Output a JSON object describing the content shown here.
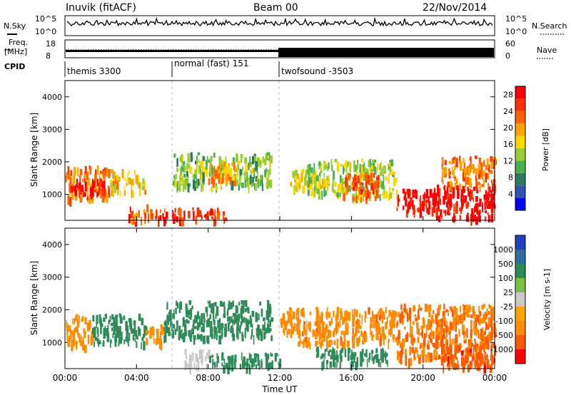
{
  "header": {
    "title": "Inuvik (fitACF)",
    "beam": "Beam 00",
    "date": "22/Nov/2014"
  },
  "nsky_panel": {
    "left_label": "N.Sky",
    "right_label": "N.Search",
    "left_ticks": [
      "10^5",
      "10^0"
    ],
    "right_ticks": [
      "10^5",
      "10^0"
    ]
  },
  "freq_panel": {
    "left_label_1": "Freq.",
    "left_label_2": "[MHz]",
    "left_ticks": [
      "18",
      "8"
    ],
    "right_label": "Nave",
    "right_ticks": [
      "60",
      "0"
    ]
  },
  "cpid_panel": {
    "label": "CPID",
    "segments": [
      {
        "name": "themis 3300",
        "start_hour": 0,
        "end_hour": 6
      },
      {
        "name": "normal (fast) 151",
        "start_hour": 6,
        "end_hour": 12
      },
      {
        "name": "twofsound -3503",
        "start_hour": 12,
        "end_hour": 24
      }
    ]
  },
  "colors": {
    "power": [
      "#0000ff",
      "#2b55b0",
      "#2e7a5e",
      "#4caf50",
      "#9acd32",
      "#ffd700",
      "#ffa500",
      "#ff6400",
      "#ff3000",
      "#ff0000"
    ],
    "velocity": [
      "#2040c0",
      "#2e6b9e",
      "#2e8b57",
      "#7bc043",
      "#c8c8c8",
      "#ffa500",
      "#ff8c00",
      "#ff5a00",
      "#ff0000"
    ]
  },
  "chart_data": [
    {
      "type": "heatmap",
      "panel": "power",
      "ylabel": "Slant Range [km]",
      "yticks": [
        1000,
        2000,
        3000,
        4000
      ],
      "ylim": [
        200,
        4500
      ],
      "xlim": [
        0,
        24
      ],
      "colorbar_label": "Power [dB]",
      "colorbar_ticks": [
        4,
        8,
        12,
        16,
        20,
        24,
        28
      ],
      "colorbar_range": [
        0,
        30
      ],
      "regions": [
        {
          "x": [
            0.0,
            2.5
          ],
          "y": [
            900,
            1900
          ],
          "value": 22
        },
        {
          "x": [
            0.3,
            2.2
          ],
          "y": [
            1050,
            1500
          ],
          "value": 28
        },
        {
          "x": [
            2.5,
            4.5
          ],
          "y": [
            1100,
            1800
          ],
          "value": 18
        },
        {
          "x": [
            3.5,
            5.0
          ],
          "y": [
            300,
            700
          ],
          "value": 24
        },
        {
          "x": [
            5.0,
            9.0
          ],
          "y": [
            250,
            600
          ],
          "value": 26
        },
        {
          "x": [
            6.0,
            11.5
          ],
          "y": [
            1300,
            2300
          ],
          "value": 12
        },
        {
          "x": [
            8.0,
            9.5
          ],
          "y": [
            1200,
            2000
          ],
          "value": 20
        },
        {
          "x": [
            12.5,
            14.5
          ],
          "y": [
            1200,
            1800
          ],
          "value": 16
        },
        {
          "x": [
            13.5,
            18.5
          ],
          "y": [
            1000,
            2100
          ],
          "value": 14
        },
        {
          "x": [
            15.5,
            17.5
          ],
          "y": [
            900,
            1700
          ],
          "value": 24
        },
        {
          "x": [
            18.5,
            21.0
          ],
          "y": [
            500,
            1200
          ],
          "value": 28
        },
        {
          "x": [
            20.5,
            24.0
          ],
          "y": [
            300,
            1300
          ],
          "value": 30
        },
        {
          "x": [
            21.0,
            24.0
          ],
          "y": [
            1300,
            2200
          ],
          "value": 22
        }
      ]
    },
    {
      "type": "heatmap",
      "panel": "velocity",
      "ylabel": "Slant Range [km]",
      "yticks": [
        1000,
        2000,
        3000,
        4000
      ],
      "ylim": [
        200,
        4500
      ],
      "xlim": [
        0,
        24
      ],
      "xticks": [
        "00:00",
        "04:00",
        "08:00",
        "12:00",
        "16:00",
        "20:00",
        "00:00"
      ],
      "xlabel": "Time UT",
      "colorbar_label": "Velocity [m s-1]",
      "colorbar_ticks": [
        1000,
        500,
        100,
        25,
        -25,
        -100,
        -500,
        -1000
      ],
      "regions": [
        {
          "x": [
            0.0,
            1.5
          ],
          "y": [
            900,
            1900
          ],
          "value": -300
        },
        {
          "x": [
            1.5,
            4.5
          ],
          "y": [
            1000,
            1900
          ],
          "value": 200
        },
        {
          "x": [
            4.5,
            5.5
          ],
          "y": [
            1000,
            1600
          ],
          "value": -200
        },
        {
          "x": [
            5.5,
            11.5
          ],
          "y": [
            1200,
            2300
          ],
          "value": 150
        },
        {
          "x": [
            6.5,
            8.0
          ],
          "y": [
            300,
            800
          ],
          "value": 0
        },
        {
          "x": [
            8.0,
            12.0
          ],
          "y": [
            300,
            700
          ],
          "value": 200
        },
        {
          "x": [
            12.0,
            13.0
          ],
          "y": [
            1300,
            2100
          ],
          "value": -300
        },
        {
          "x": [
            13.0,
            18.5
          ],
          "y": [
            1000,
            2100
          ],
          "value": -400
        },
        {
          "x": [
            14.0,
            18.0
          ],
          "y": [
            400,
            900
          ],
          "value": 150
        },
        {
          "x": [
            18.5,
            24.0
          ],
          "y": [
            500,
            2200
          ],
          "value": -500
        },
        {
          "x": [
            21.0,
            24.0
          ],
          "y": [
            300,
            1000
          ],
          "value": -800
        }
      ]
    }
  ]
}
